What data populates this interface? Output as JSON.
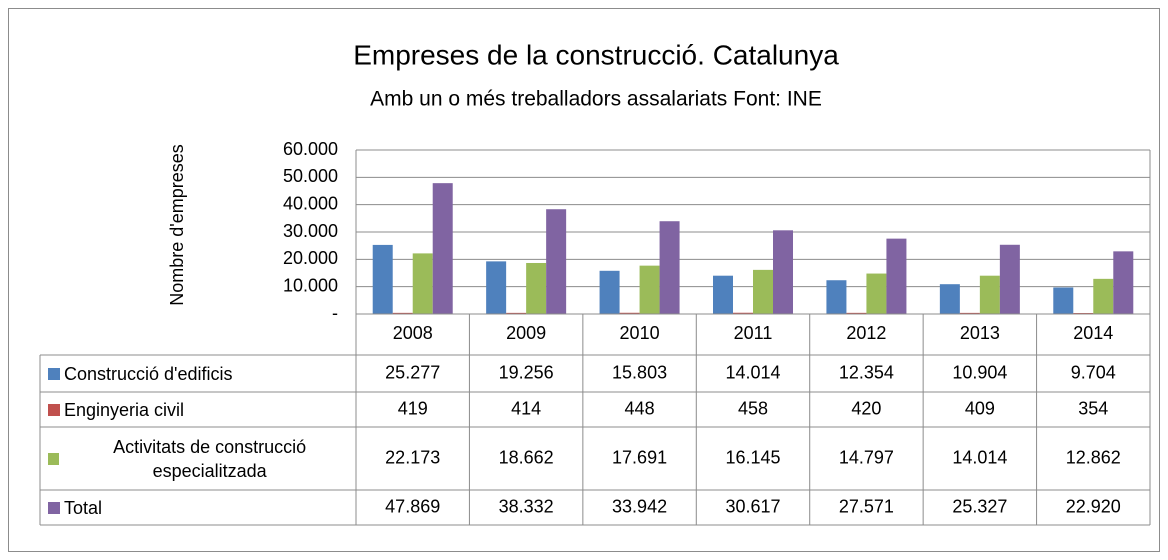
{
  "chart_data": {
    "type": "bar",
    "title": "Empreses de la construcció. Catalunya",
    "subtitle": "Amb un o més treballadors assalariats Font: INE",
    "y_label": "Nombre d'empreses",
    "categories": [
      "2008",
      "2009",
      "2010",
      "2011",
      "2012",
      "2013",
      "2014"
    ],
    "series": [
      {
        "name": "Construcció d'edificis",
        "color": "#4f81bd",
        "values": [
          25277,
          19256,
          15803,
          14014,
          12354,
          10904,
          9704
        ],
        "value_labels": [
          "25.277",
          "19.256",
          "15.803",
          "14.014",
          "12.354",
          "10.904",
          "9.704"
        ]
      },
      {
        "name": "Enginyeria civil",
        "color": "#c0504d",
        "values": [
          419,
          414,
          448,
          458,
          420,
          409,
          354
        ],
        "value_labels": [
          "419",
          "414",
          "448",
          "458",
          "420",
          "409",
          "354"
        ]
      },
      {
        "name": "Activitats de construcció especialitzada",
        "color": "#9bbb59",
        "values": [
          22173,
          18662,
          17691,
          16145,
          14797,
          14014,
          12862
        ],
        "value_labels": [
          "22.173",
          "18.662",
          "17.691",
          "16.145",
          "14.797",
          "14.014",
          "12.862"
        ]
      },
      {
        "name": "Total",
        "color": "#8064a2",
        "values": [
          47869,
          38332,
          33942,
          30617,
          27571,
          25327,
          22920
        ],
        "value_labels": [
          "47.869",
          "38.332",
          "33.942",
          "30.617",
          "27.571",
          "25.327",
          "22.920"
        ]
      }
    ],
    "ylim": [
      0,
      60000
    ],
    "yticks": [
      {
        "value": 0,
        "label": "-"
      },
      {
        "value": 10000,
        "label": "10.000"
      },
      {
        "value": 20000,
        "label": "20.000"
      },
      {
        "value": 30000,
        "label": "30.000"
      },
      {
        "value": 40000,
        "label": "40.000"
      },
      {
        "value": 50000,
        "label": "50.000"
      },
      {
        "value": 60000,
        "label": "60.000"
      }
    ],
    "grid": true
  }
}
